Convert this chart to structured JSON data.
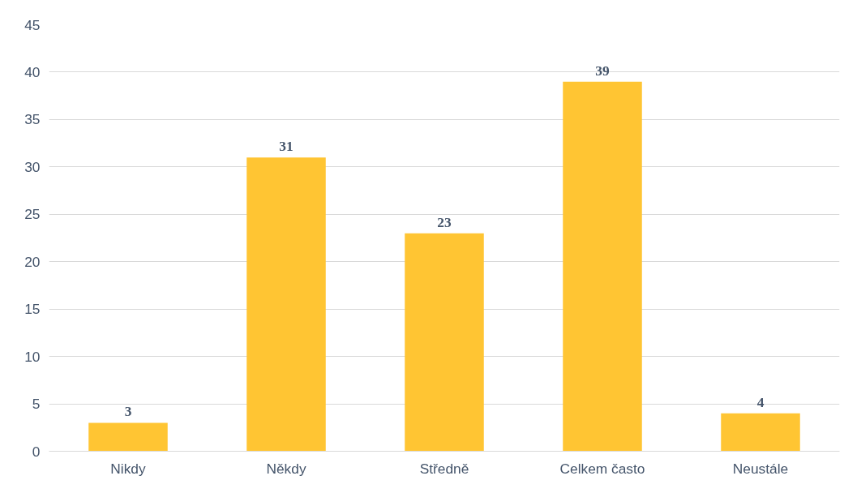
{
  "chart_data": {
    "type": "bar",
    "categories": [
      "Nikdy",
      "Někdy",
      "Středně",
      "Celkem často",
      "Neustále"
    ],
    "values": [
      3,
      31,
      23,
      39,
      4
    ],
    "color": "#ffc533",
    "ylim": [
      0,
      45
    ],
    "yticks": [
      0,
      5,
      10,
      15,
      20,
      25,
      30,
      35,
      40,
      45
    ],
    "grid": "y",
    "data_labels": true
  }
}
